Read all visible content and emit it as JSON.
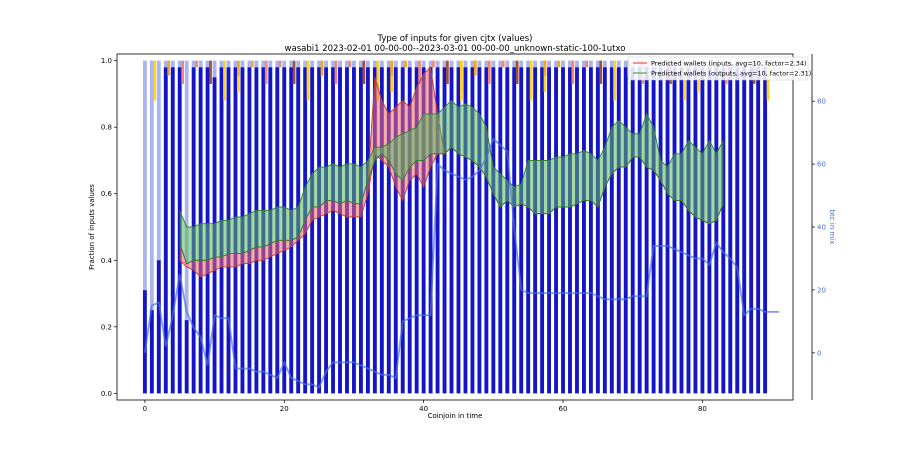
{
  "chart_data": {
    "type": "bar",
    "title": "Type of inputs for given cjtx (values)",
    "subtitle": "wasabi1 2023-02-01 00-00-00--2023-03-01 00-00-00_unknown-static-100-1utxo",
    "xlabel": "Coinjoin in time",
    "ylabel": "Fraction of inputs values",
    "ylabel_right": "btc in mix",
    "xlim": [
      -4,
      93
    ],
    "ylim": [
      -0.02,
      1.02
    ],
    "ylim_right": [
      -15,
      95
    ],
    "x_ticks": [
      "0",
      "20",
      "40",
      "60",
      "80"
    ],
    "y_ticks": [
      "0.0",
      "0.2",
      "0.4",
      "0.6",
      "0.8",
      "1.0"
    ],
    "y_ticks_right": [
      "0",
      "20",
      "40",
      "60",
      "80"
    ],
    "legend_position": "top-right",
    "colors": {
      "fresh_inputs": "#1515c8",
      "remixed_inputs": "#aab4ee",
      "yellow_inputs": "#ffd21e",
      "orange_inputs": "#f5a623",
      "salmon_inputs": "#f08878",
      "brown_inputs": "#a0522d",
      "inputs_band": "#f26a6a",
      "outputs_band": "#5cb85c",
      "btc_line": "#4a6fe0"
    },
    "blue_fraction": [
      0.31,
      0.25,
      0.4,
      0.98,
      0.98,
      0.98,
      0.22,
      0.98,
      0.98,
      0.98,
      0.95,
      0.98,
      0.98,
      0.98,
      0.98,
      0.98,
      0.98,
      0.98,
      0.98,
      0.98,
      0.98,
      0.98,
      0.98,
      0.98,
      0.98,
      0.98,
      0.98,
      0.98,
      0.98,
      0.98,
      0.98,
      0.98,
      0.98,
      0.98,
      0.98,
      0.98,
      0.98,
      0.98,
      0.98,
      0.98,
      0.98,
      0.98,
      0.98,
      0.98,
      0.98,
      0.98,
      0.98,
      0.98,
      0.98,
      0.98,
      0.98,
      0.98,
      0.98,
      0.98,
      0.98,
      0.98,
      0.98,
      0.98,
      0.98,
      0.98,
      0.98,
      0.98,
      0.98,
      0.98,
      0.98,
      0.98,
      0.98,
      0.98,
      0.98,
      0.98,
      0.98,
      0.98,
      0.98,
      0.98,
      0.98,
      0.98,
      0.98,
      0.98,
      0.98,
      0.98,
      0.98,
      0.98,
      0.98,
      0.98,
      0.98,
      0.98,
      0.98,
      0.98,
      0.98,
      0.98
    ],
    "btc_in_mix": [
      0,
      15,
      16,
      2,
      12,
      25,
      13,
      8,
      5,
      -4,
      12,
      11,
      11,
      -5,
      -5,
      -5,
      -6,
      -6,
      -7,
      -8,
      -3,
      -8,
      -9,
      -10,
      -10,
      -11,
      -6,
      -3,
      -3,
      -3,
      -3,
      -4,
      -5,
      -6,
      -7,
      -7,
      -8,
      10,
      11,
      12,
      12,
      12,
      60,
      58,
      57,
      56,
      55,
      56,
      58,
      62,
      68,
      66,
      64,
      40,
      20,
      19,
      19,
      19,
      19,
      19,
      19,
      19,
      19,
      19,
      19,
      18,
      17,
      17,
      17,
      17,
      18,
      18,
      18,
      34,
      34,
      34,
      33,
      32,
      31,
      30,
      30,
      28,
      35,
      32,
      30,
      27,
      12,
      14,
      14,
      13,
      13,
      13
    ],
    "series": [
      {
        "name": "Predicted wallets (inputs, avg=10, factor=2.34)",
        "kind": "band",
        "x": [
          5,
          6,
          7,
          8,
          9,
          10,
          11,
          12,
          13,
          14,
          15,
          16,
          17,
          18,
          19,
          20,
          21,
          22,
          23,
          24,
          25,
          26,
          27,
          28,
          29,
          30,
          31,
          32,
          33,
          34,
          35,
          36,
          37,
          38,
          39,
          40,
          41,
          42,
          43,
          44,
          45,
          46,
          47,
          48,
          49,
          50,
          51,
          52,
          53,
          54,
          55,
          56,
          57,
          58,
          59,
          60,
          61,
          62,
          63,
          64,
          65,
          66,
          67,
          68,
          69,
          70,
          71,
          72,
          73,
          74,
          75,
          76,
          77,
          78,
          79,
          80,
          81,
          82,
          83
        ],
        "upper": [
          0.45,
          0.39,
          0.4,
          0.4,
          0.4,
          0.41,
          0.41,
          0.42,
          0.42,
          0.42,
          0.43,
          0.44,
          0.44,
          0.45,
          0.46,
          0.46,
          0.46,
          0.47,
          0.52,
          0.56,
          0.56,
          0.58,
          0.58,
          0.57,
          0.58,
          0.57,
          0.57,
          0.64,
          0.95,
          0.88,
          0.84,
          0.86,
          0.88,
          0.86,
          0.92,
          0.96,
          0.98,
          0.84,
          0.72,
          0.74,
          0.72,
          0.71,
          0.7,
          0.68,
          0.65,
          0.6,
          0.56,
          0.58,
          0.56,
          0.57,
          0.56,
          0.54,
          0.54,
          0.54,
          0.56,
          0.56,
          0.56,
          0.57,
          0.58,
          0.58,
          0.56,
          0.62,
          0.66,
          0.68,
          0.68,
          0.71,
          0.71,
          0.68,
          0.67,
          0.64,
          0.6,
          0.58,
          0.58,
          0.55,
          0.53,
          0.52,
          0.51,
          0.52,
          0.57
        ],
        "lower": [
          0.4,
          0.38,
          0.37,
          0.35,
          0.36,
          0.37,
          0.38,
          0.38,
          0.38,
          0.39,
          0.39,
          0.4,
          0.4,
          0.41,
          0.42,
          0.43,
          0.44,
          0.46,
          0.48,
          0.52,
          0.53,
          0.54,
          0.55,
          0.54,
          0.53,
          0.53,
          0.53,
          0.6,
          0.72,
          0.7,
          0.68,
          0.62,
          0.58,
          0.64,
          0.66,
          0.62,
          0.68,
          0.72,
          0.72,
          0.74,
          0.72,
          0.71,
          0.7,
          0.68,
          0.65,
          0.6,
          0.56,
          0.58,
          0.56,
          0.57,
          0.56,
          0.54,
          0.54,
          0.54,
          0.56,
          0.56,
          0.56,
          0.57,
          0.58,
          0.58,
          0.56,
          0.62,
          0.66,
          0.68,
          0.68,
          0.71,
          0.71,
          0.68,
          0.67,
          0.64,
          0.6,
          0.58,
          0.58,
          0.55,
          0.53,
          0.52,
          0.51,
          0.52,
          0.57
        ]
      },
      {
        "name": "Predicted wallets (outputs, avg=10, factor=2.31)",
        "kind": "band",
        "x": [
          5,
          6,
          7,
          8,
          9,
          10,
          11,
          12,
          13,
          14,
          15,
          16,
          17,
          18,
          19,
          20,
          21,
          22,
          23,
          24,
          25,
          26,
          27,
          28,
          29,
          30,
          31,
          32,
          33,
          34,
          35,
          36,
          37,
          38,
          39,
          40,
          41,
          42,
          43,
          44,
          45,
          46,
          47,
          48,
          49,
          50,
          51,
          52,
          53,
          54,
          55,
          56,
          57,
          58,
          59,
          60,
          61,
          62,
          63,
          64,
          65,
          66,
          67,
          68,
          69,
          70,
          71,
          72,
          73,
          74,
          75,
          76,
          77,
          78,
          79,
          80,
          81,
          82,
          83
        ],
        "upper": [
          0.55,
          0.5,
          0.5,
          0.51,
          0.51,
          0.51,
          0.52,
          0.52,
          0.53,
          0.53,
          0.54,
          0.55,
          0.55,
          0.55,
          0.56,
          0.56,
          0.55,
          0.56,
          0.62,
          0.66,
          0.68,
          0.68,
          0.69,
          0.68,
          0.69,
          0.69,
          0.68,
          0.7,
          0.74,
          0.74,
          0.75,
          0.77,
          0.78,
          0.79,
          0.8,
          0.84,
          0.84,
          0.84,
          0.86,
          0.88,
          0.86,
          0.87,
          0.86,
          0.84,
          0.8,
          0.68,
          0.66,
          0.64,
          0.62,
          0.63,
          0.7,
          0.7,
          0.7,
          0.7,
          0.71,
          0.71,
          0.72,
          0.72,
          0.73,
          0.72,
          0.7,
          0.74,
          0.8,
          0.82,
          0.8,
          0.78,
          0.78,
          0.84,
          0.8,
          0.7,
          0.68,
          0.72,
          0.72,
          0.76,
          0.74,
          0.72,
          0.76,
          0.72,
          0.76
        ],
        "lower": [
          0.45,
          0.39,
          0.4,
          0.4,
          0.4,
          0.41,
          0.41,
          0.42,
          0.42,
          0.42,
          0.43,
          0.44,
          0.44,
          0.45,
          0.46,
          0.46,
          0.46,
          0.47,
          0.52,
          0.56,
          0.56,
          0.58,
          0.58,
          0.57,
          0.58,
          0.57,
          0.57,
          0.64,
          0.7,
          0.72,
          0.7,
          0.66,
          0.64,
          0.68,
          0.7,
          0.7,
          0.72,
          0.72,
          0.72,
          0.74,
          0.72,
          0.71,
          0.7,
          0.68,
          0.65,
          0.6,
          0.56,
          0.58,
          0.56,
          0.57,
          0.56,
          0.54,
          0.54,
          0.54,
          0.56,
          0.56,
          0.56,
          0.57,
          0.58,
          0.58,
          0.56,
          0.62,
          0.66,
          0.68,
          0.68,
          0.71,
          0.71,
          0.68,
          0.67,
          0.64,
          0.6,
          0.58,
          0.58,
          0.55,
          0.53,
          0.52,
          0.51,
          0.52,
          0.57
        ]
      },
      {
        "name": "btc in mix",
        "kind": "line",
        "axis": "right"
      }
    ]
  }
}
